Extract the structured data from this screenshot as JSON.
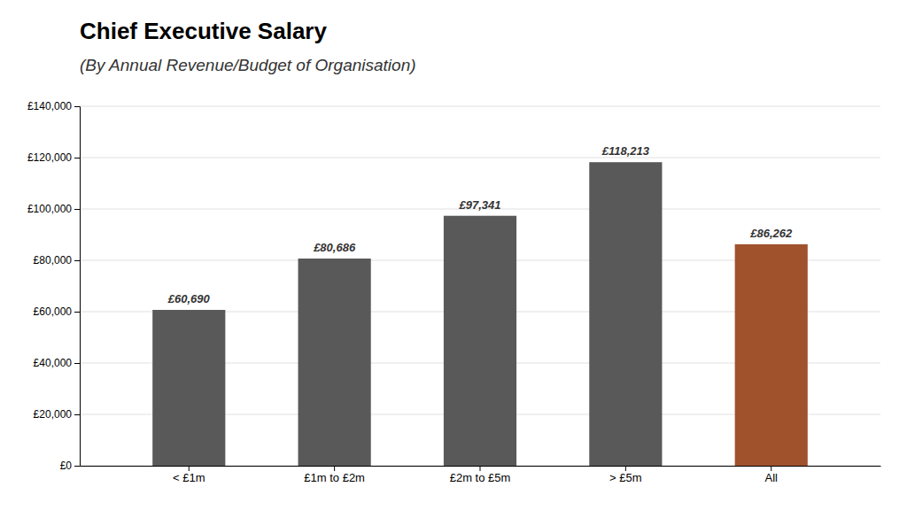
{
  "chart_data": {
    "type": "bar",
    "title": "Chief Executive Salary",
    "subtitle": "(By Annual Revenue/Budget of Organisation)",
    "categories": [
      "< £1m",
      "£1m to £2m",
      "£2m to £5m",
      "> £5m",
      "All"
    ],
    "values": [
      60690,
      80686,
      97341,
      118213,
      86262
    ],
    "value_labels": [
      "£60,690",
      "£80,686",
      "£97,341",
      "£118,213",
      "£86,262"
    ],
    "data_labels": true,
    "colors": [
      "#595959",
      "#595959",
      "#595959",
      "#595959",
      "#A0522D"
    ],
    "ylim": [
      0,
      140000
    ],
    "yticks": [
      {
        "value": 0,
        "label": "£0"
      },
      {
        "value": 20000,
        "label": "£20,000"
      },
      {
        "value": 40000,
        "label": "£40,000"
      },
      {
        "value": 60000,
        "label": "£60,000"
      },
      {
        "value": 80000,
        "label": "£80,000"
      },
      {
        "value": 100000,
        "label": "£100,000"
      },
      {
        "value": 120000,
        "label": "£120,000"
      },
      {
        "value": 140000,
        "label": "£140,000"
      }
    ],
    "grid": true
  }
}
